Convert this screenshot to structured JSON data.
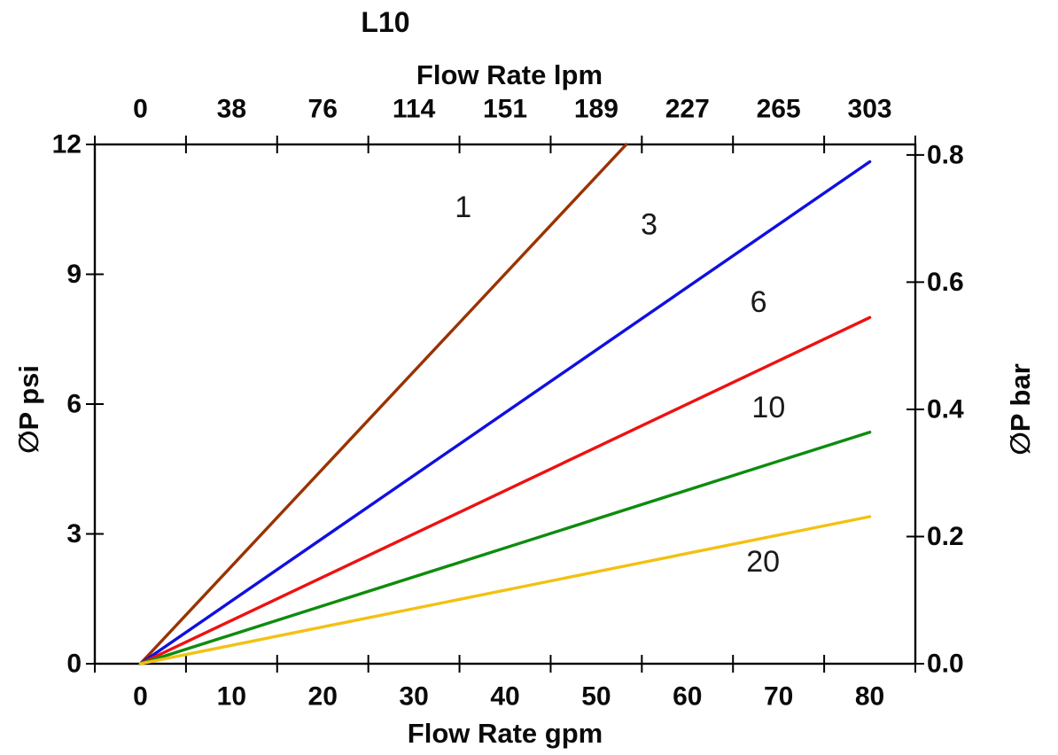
{
  "title": "L10",
  "chart_data": {
    "type": "line",
    "title": "L10",
    "grid": false,
    "legend": "inline-labels",
    "top_axis": {
      "label": "Flow Rate lpm",
      "ticks": [
        "0",
        "38",
        "76",
        "114",
        "151",
        "189",
        "227",
        "265",
        "303"
      ]
    },
    "bottom_axis": {
      "label": "Flow Rate gpm",
      "ticks": [
        "0",
        "10",
        "20",
        "30",
        "40",
        "50",
        "60",
        "70",
        "80"
      ],
      "range_gpm": [
        0,
        80
      ]
    },
    "left_axis": {
      "label": "∅P psi",
      "tick_labels": [
        "0",
        "3",
        "6",
        "9",
        "12"
      ],
      "tick_values": [
        0,
        3,
        6,
        9,
        12
      ],
      "range": [
        0,
        12
      ]
    },
    "right_axis": {
      "label": "∅P bar",
      "tick_labels": [
        "0.0",
        "0.2",
        "0.4",
        "0.6",
        "0.8"
      ],
      "tick_values": [
        0,
        0.2,
        0.4,
        0.6,
        0.8
      ],
      "psi_per_bar": 14.696
    },
    "series": [
      {
        "name": "1",
        "color": "#993300",
        "points": [
          [
            0,
            0
          ],
          [
            53.3,
            12
          ]
        ],
        "label_at": [
          35.4,
          10.55
        ]
      },
      {
        "name": "3",
        "color": "#1010E0",
        "points": [
          [
            0,
            0
          ],
          [
            80,
            11.6
          ]
        ],
        "label_at": [
          55.8,
          10.15
        ]
      },
      {
        "name": "6",
        "color": "#EE1111",
        "points": [
          [
            0,
            0
          ],
          [
            80,
            8.0
          ]
        ],
        "label_at": [
          67.8,
          8.35
        ]
      },
      {
        "name": "10",
        "color": "#0E8C0E",
        "points": [
          [
            0,
            0
          ],
          [
            80,
            5.35
          ]
        ],
        "label_at": [
          68.9,
          5.92
        ]
      },
      {
        "name": "20",
        "color": "#F2C113",
        "points": [
          [
            0,
            0
          ],
          [
            80,
            3.4
          ]
        ],
        "label_at": [
          68.3,
          2.35
        ]
      }
    ]
  }
}
